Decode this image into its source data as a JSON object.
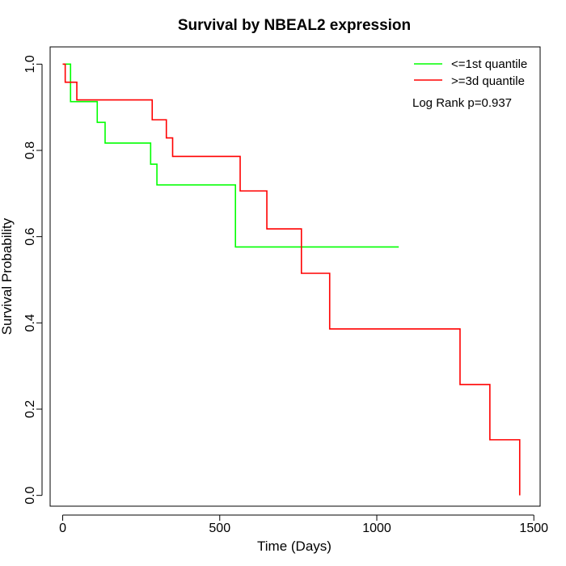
{
  "chart_data": {
    "type": "line",
    "title": "Survival by NBEAL2 expression",
    "xlabel": "Time (Days)",
    "ylabel": "Survival Probability",
    "xlim": [
      -40,
      1520
    ],
    "ylim": [
      -0.025,
      1.04
    ],
    "x_ticks": [
      0,
      500,
      1000,
      1500
    ],
    "y_ticks": [
      0.0,
      0.2,
      0.4,
      0.6,
      0.8,
      1.0
    ],
    "x_tick_labels": [
      "0",
      "500",
      "1000",
      "1500"
    ],
    "y_tick_labels": [
      "0.0",
      "0.2",
      "0.4",
      "0.6",
      "0.8",
      "1.0"
    ],
    "legend_position": "top-right",
    "annotation": "Log Rank p=0.937",
    "series": [
      {
        "name": "<=1st quantile",
        "color": "#00ff00",
        "step": true,
        "x": [
          0,
          25,
          110,
          135,
          280,
          300,
          550,
          1070
        ],
        "y": [
          1.0,
          0.913,
          0.865,
          0.817,
          0.768,
          0.72,
          0.576,
          0.576
        ]
      },
      {
        "name": ">=3d quantile",
        "color": "#ff0000",
        "step": true,
        "x": [
          0,
          8,
          45,
          285,
          330,
          350,
          565,
          650,
          760,
          850,
          1265,
          1360,
          1455
        ],
        "y": [
          1.0,
          0.958,
          0.917,
          0.871,
          0.829,
          0.786,
          0.706,
          0.618,
          0.515,
          0.386,
          0.257,
          0.129,
          0.0
        ]
      }
    ]
  }
}
